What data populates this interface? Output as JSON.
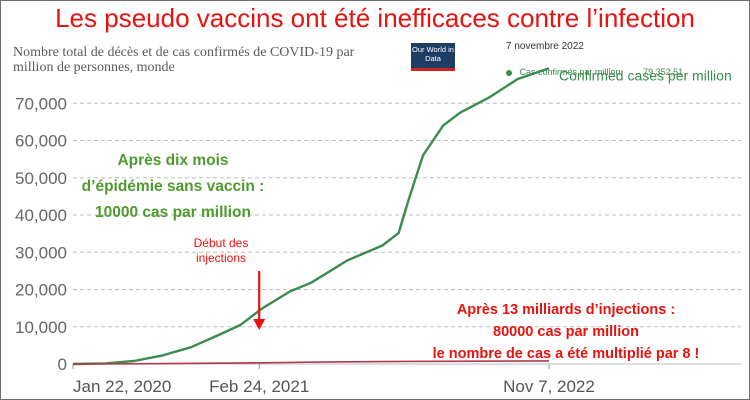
{
  "headline": "Les pseudo vaccins ont été inefficaces contre l’infection",
  "subtitle": "Nombre total de décès et de cas confirmés de COVID-19 par million de personnes, monde",
  "logo_text": "Our World in Data",
  "date_label": "7 novembre 2022",
  "legend": {
    "label": "Cas confirmés par million",
    "value": "79 352,51"
  },
  "series_label": "Confirmed cases per million",
  "annotation_green": [
    "Après dix mois",
    "d’épidémie sans vaccin :",
    "10000 cas par million"
  ],
  "annotation_arrow": [
    "Début des",
    "injections"
  ],
  "annotation_red": [
    "Après 13 milliards d’injections :",
    "80000 cas par million",
    "le nombre de cas a été multiplié par 8 !"
  ],
  "colors": {
    "headline": "#e8120f",
    "cases": "#3b8a4e",
    "deaths": "#b03a48",
    "green_text": "#4e9a2f",
    "red_text": "#e8120f"
  },
  "chart_data": {
    "type": "line",
    "x_ticks": [
      "Jan 22, 2020",
      "Feb 24, 2021",
      "Nov 7, 2022"
    ],
    "y_ticks": [
      "0",
      "10,000",
      "20,000",
      "30,000",
      "40,000",
      "50,000",
      "60,000",
      "70,000"
    ],
    "ylim": [
      0,
      80000
    ],
    "xlim": [
      "2020-01-22",
      "2022-11-07"
    ],
    "grid": true,
    "series": [
      {
        "name": "Confirmed cases per million",
        "points": [
          [
            "2020-01-22",
            0
          ],
          [
            "2020-04-01",
            150
          ],
          [
            "2020-06-01",
            800
          ],
          [
            "2020-08-01",
            2300
          ],
          [
            "2020-10-01",
            4500
          ],
          [
            "2020-12-01",
            7900
          ],
          [
            "2021-01-15",
            10500
          ],
          [
            "2021-03-01",
            14800
          ],
          [
            "2021-05-01",
            19500
          ],
          [
            "2021-06-15",
            21800
          ],
          [
            "2021-09-01",
            27800
          ],
          [
            "2021-11-15",
            31800
          ],
          [
            "2021-12-20",
            35200
          ],
          [
            "2022-01-10",
            44000
          ],
          [
            "2022-02-10",
            56000
          ],
          [
            "2022-03-25",
            64000
          ],
          [
            "2022-05-01",
            67500
          ],
          [
            "2022-07-01",
            71500
          ],
          [
            "2022-09-01",
            76500
          ],
          [
            "2022-11-07",
            79352.51
          ]
        ]
      },
      {
        "points": [
          [
            "2020-01-22",
            0
          ],
          [
            "2020-07-01",
            80
          ],
          [
            "2021-01-01",
            250
          ],
          [
            "2021-07-01",
            500
          ],
          [
            "2022-01-01",
            700
          ],
          [
            "2022-11-07",
            830
          ]
        ]
      }
    ],
    "annotation_arrow_date": "2021-02-24"
  }
}
